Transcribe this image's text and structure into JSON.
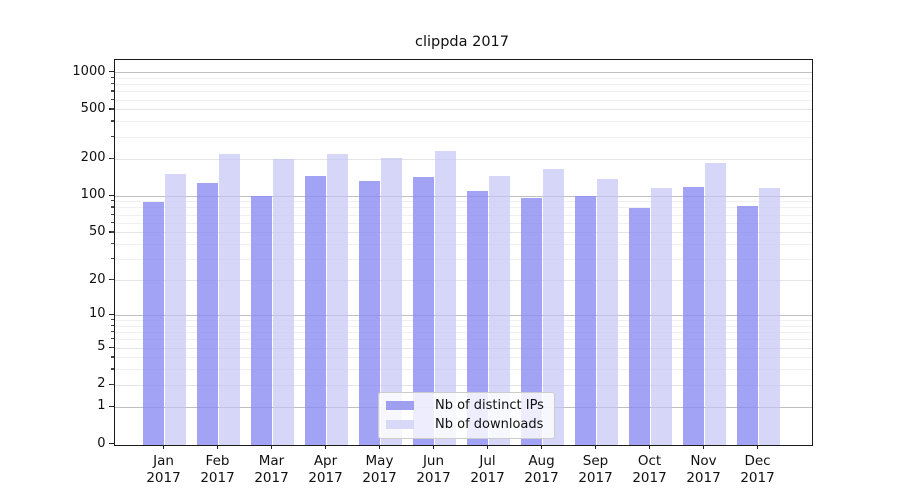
{
  "chart_data": {
    "type": "bar",
    "title": "clippda 2017",
    "categories": [
      "Jan",
      "Feb",
      "Mar",
      "Apr",
      "May",
      "Jun",
      "Jul",
      "Aug",
      "Sep",
      "Oct",
      "Nov",
      "Dec"
    ],
    "category_year": "2017",
    "series": [
      {
        "name": "Nb of distinct IPs",
        "color": "rgba(140,140,242,0.8)",
        "legend_color": "#9f9ff0",
        "values": [
          90,
          127,
          100,
          146,
          132,
          143,
          110,
          96,
          100,
          80,
          119,
          83
        ]
      },
      {
        "name": "Nb of downloads",
        "color": "rgba(196,196,247,0.7)",
        "legend_color": "#d8d8f8",
        "values": [
          151,
          218,
          200,
          218,
          203,
          231,
          145,
          165,
          137,
          117,
          186,
          117
        ]
      }
    ],
    "yscale": "symlog",
    "ylim": [
      0,
      1277
    ],
    "y_tick_labels": [
      "1000",
      "500",
      "200",
      "100",
      "50",
      "20",
      "10",
      "5",
      "2",
      "1",
      "0"
    ],
    "y_tick_values": [
      1000,
      500,
      200,
      100,
      50,
      20,
      10,
      5,
      2,
      1,
      0
    ],
    "grid": {
      "major_values": [
        1,
        10,
        100,
        1000
      ],
      "sub_values": [
        2,
        5,
        20,
        50,
        200,
        500
      ],
      "minor_values": [
        3,
        4,
        6,
        7,
        8,
        9,
        30,
        40,
        60,
        70,
        80,
        90,
        300,
        400,
        600,
        700,
        800,
        900
      ],
      "major_color": "#bfbfbf",
      "sub_color": "#e4e4e4",
      "minor_color": "#f0f0f0"
    },
    "legend_position": "lower center",
    "axis_color": "#1a1a1a"
  }
}
